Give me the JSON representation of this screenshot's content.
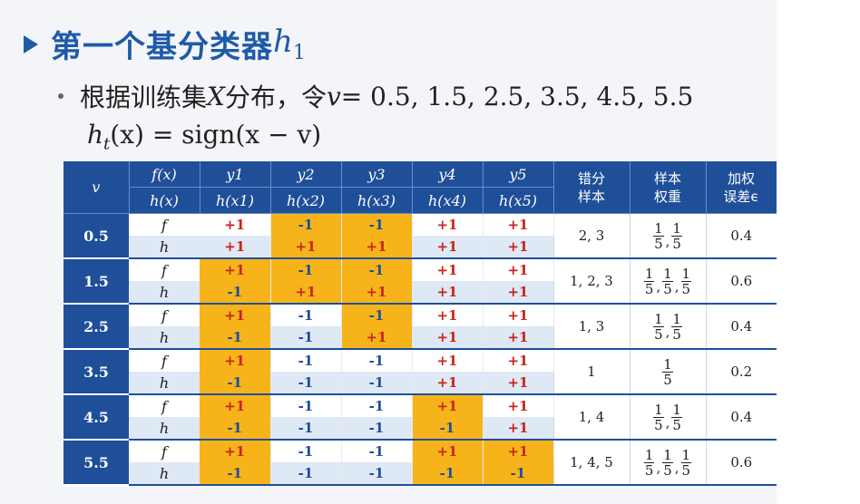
{
  "title": {
    "cn": "第一个基分类器",
    "math": "h",
    "sub": "1"
  },
  "bullet": {
    "cn1": "根据训练集",
    "var": "X",
    "cn2": "分布，令",
    "v": "v",
    "eq": " = 0.5, 1.5, 2.5, 3.5, 4.5, 5.5"
  },
  "formula": {
    "h": "h",
    "t": "t",
    "rest": "(x) = sign(x − v)"
  },
  "table": {
    "header": {
      "v": "v",
      "fx": "f(x)",
      "hx": "h(x)",
      "y": [
        "y1",
        "y2",
        "y3",
        "y4",
        "y5"
      ],
      "hxi": [
        "h(x1)",
        "h(x2)",
        "h(x3)",
        "h(x4)",
        "h(x5)"
      ],
      "err_samples": [
        "错分",
        "样本"
      ],
      "weights": [
        "样本",
        "权重"
      ],
      "werr": [
        "加权",
        "误差ϵ"
      ]
    },
    "rows": [
      {
        "v": "0.5",
        "f": [
          "+1",
          "-1",
          "-1",
          "+1",
          "+1"
        ],
        "h": [
          "+1",
          "+1",
          "+1",
          "+1",
          "+1"
        ],
        "samples": "2, 3",
        "weights": [
          "1",
          "1"
        ],
        "denom": "5",
        "err": "0.4"
      },
      {
        "v": "1.5",
        "f": [
          "+1",
          "-1",
          "-1",
          "+1",
          "+1"
        ],
        "h": [
          "-1",
          "+1",
          "+1",
          "+1",
          "+1"
        ],
        "samples": "1, 2, 3",
        "weights": [
          "1",
          "1",
          "1"
        ],
        "denom": "5",
        "err": "0.6"
      },
      {
        "v": "2.5",
        "f": [
          "+1",
          "-1",
          "-1",
          "+1",
          "+1"
        ],
        "h": [
          "-1",
          "-1",
          "+1",
          "+1",
          "+1"
        ],
        "samples": "1, 3",
        "weights": [
          "1",
          "1"
        ],
        "denom": "5",
        "err": "0.4"
      },
      {
        "v": "3.5",
        "f": [
          "+1",
          "-1",
          "-1",
          "+1",
          "+1"
        ],
        "h": [
          "-1",
          "-1",
          "-1",
          "+1",
          "+1"
        ],
        "samples": "1",
        "weights": [
          "1"
        ],
        "denom": "5",
        "err": "0.2"
      },
      {
        "v": "4.5",
        "f": [
          "+1",
          "-1",
          "-1",
          "+1",
          "+1"
        ],
        "h": [
          "-1",
          "-1",
          "-1",
          "-1",
          "+1"
        ],
        "samples": "1, 4",
        "weights": [
          "1",
          "1"
        ],
        "denom": "5",
        "err": "0.4"
      },
      {
        "v": "5.5",
        "f": [
          "+1",
          "-1",
          "-1",
          "+1",
          "+1"
        ],
        "h": [
          "-1",
          "-1",
          "-1",
          "-1",
          "-1"
        ],
        "samples": "1, 4, 5",
        "weights": [
          "1",
          "1",
          "1"
        ],
        "denom": "5",
        "err": "0.6"
      }
    ],
    "labels": {
      "f": "f",
      "h": "h"
    }
  },
  "colors": {
    "accent": "#1f4f99",
    "highlight": "#f6b41a",
    "plus": "#c8261b",
    "minus": "#1f4f99"
  }
}
